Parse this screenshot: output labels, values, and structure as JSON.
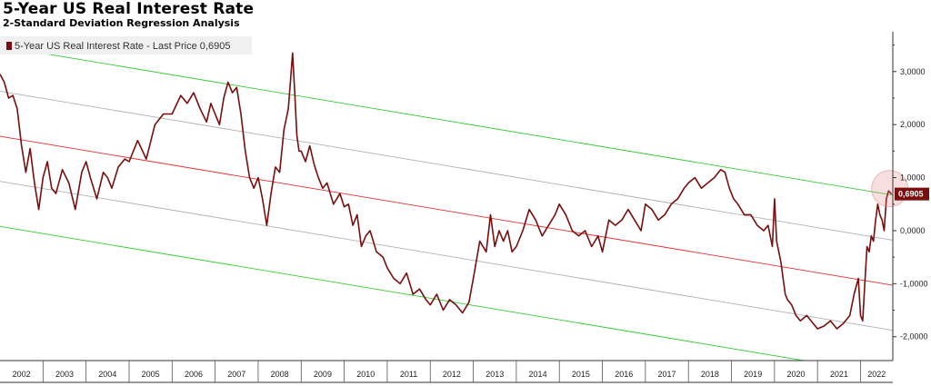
{
  "title": "5-Year US Real Interest Rate",
  "subtitle": "2-Standard Deviation Regression Analysis",
  "legend": {
    "label": "5-Year US Real Interest Rate - Last Price 0,6905"
  },
  "last_price_label": "0,6905",
  "colors": {
    "series": "#7a0d0d",
    "regression": "#e03030",
    "band_1sd": "#b0b0b0",
    "band_2sd": "#33cc33",
    "highlight": "#e08080"
  },
  "chart_data": {
    "type": "line",
    "title": "5-Year US Real Interest Rate",
    "subtitle": "2-Standard Deviation Regression Analysis",
    "xlabel": "",
    "ylabel": "",
    "xlim": [
      2002.0,
      2022.75
    ],
    "ylim": [
      -2.45,
      3.75
    ],
    "x_ticks": [
      "2002",
      "2003",
      "2004",
      "2005",
      "2006",
      "2007",
      "2008",
      "2009",
      "2010",
      "2011",
      "2012",
      "2013",
      "2014",
      "2015",
      "2016",
      "2017",
      "2018",
      "2019",
      "2020",
      "2021",
      "2022"
    ],
    "y_ticks": [
      "3,0000",
      "2,0000",
      "1,0000",
      "0,0000",
      "-1,0000",
      "-2,0000"
    ],
    "y_tick_values": [
      3,
      2,
      1,
      0,
      -1,
      -2
    ],
    "grid": false,
    "legend_position": "top-left",
    "series": [
      {
        "name": "5-Year US Real Interest Rate",
        "x": [
          2002.0,
          2002.1,
          2002.2,
          2002.3,
          2002.4,
          2002.5,
          2002.6,
          2002.7,
          2002.8,
          2002.9,
          2003.0,
          2003.1,
          2003.2,
          2003.3,
          2003.45,
          2003.6,
          2003.75,
          2003.9,
          2004.0,
          2004.1,
          2004.25,
          2004.4,
          2004.5,
          2004.6,
          2004.75,
          2004.9,
          2005.0,
          2005.2,
          2005.4,
          2005.6,
          2005.8,
          2006.0,
          2006.2,
          2006.35,
          2006.5,
          2006.65,
          2006.8,
          2006.9,
          2007.0,
          2007.1,
          2007.2,
          2007.3,
          2007.4,
          2007.5,
          2007.6,
          2007.7,
          2007.8,
          2007.9,
          2008.0,
          2008.1,
          2008.2,
          2008.3,
          2008.4,
          2008.5,
          2008.6,
          2008.7,
          2008.75,
          2008.8,
          2008.85,
          2008.9,
          2008.95,
          2009.0,
          2009.1,
          2009.2,
          2009.3,
          2009.4,
          2009.5,
          2009.6,
          2009.75,
          2009.9,
          2010.0,
          2010.1,
          2010.2,
          2010.3,
          2010.4,
          2010.5,
          2010.6,
          2010.75,
          2010.9,
          2011.0,
          2011.15,
          2011.3,
          2011.45,
          2011.6,
          2011.75,
          2011.9,
          2012.0,
          2012.15,
          2012.3,
          2012.45,
          2012.6,
          2012.75,
          2012.9,
          2013.0,
          2013.15,
          2013.3,
          2013.4,
          2013.5,
          2013.6,
          2013.7,
          2013.8,
          2013.9,
          2014.0,
          2014.15,
          2014.3,
          2014.45,
          2014.6,
          2014.75,
          2014.9,
          2015.0,
          2015.15,
          2015.3,
          2015.45,
          2015.6,
          2015.75,
          2015.9,
          2016.0,
          2016.15,
          2016.3,
          2016.45,
          2016.6,
          2016.75,
          2016.9,
          2017.0,
          2017.15,
          2017.3,
          2017.45,
          2017.6,
          2017.75,
          2017.9,
          2018.0,
          2018.15,
          2018.3,
          2018.45,
          2018.6,
          2018.75,
          2018.85,
          2018.95,
          2019.05,
          2019.15,
          2019.3,
          2019.45,
          2019.6,
          2019.75,
          2019.85,
          2019.95,
          2020.0,
          2020.05,
          2020.1,
          2020.15,
          2020.2,
          2020.25,
          2020.3,
          2020.4,
          2020.5,
          2020.6,
          2020.75,
          2020.9,
          2021.0,
          2021.15,
          2021.3,
          2021.45,
          2021.6,
          2021.75,
          2021.85,
          2021.95,
          2022.0,
          2022.05,
          2022.1,
          2022.15,
          2022.2,
          2022.25,
          2022.3,
          2022.35,
          2022.4,
          2022.45,
          2022.5,
          2022.55,
          2022.6,
          2022.65,
          2022.72
        ],
        "y": [
          2.95,
          2.8,
          2.5,
          2.55,
          2.3,
          1.6,
          1.1,
          1.55,
          0.9,
          0.4,
          1.0,
          1.3,
          0.8,
          0.7,
          1.15,
          0.9,
          0.4,
          1.1,
          1.3,
          1.0,
          0.6,
          1.1,
          1.0,
          0.8,
          1.2,
          1.35,
          1.3,
          1.7,
          1.35,
          2.0,
          2.2,
          2.2,
          2.55,
          2.4,
          2.6,
          2.3,
          2.05,
          2.4,
          2.2,
          2.0,
          2.5,
          2.8,
          2.6,
          2.7,
          2.2,
          1.5,
          1.0,
          0.8,
          1.0,
          0.6,
          0.1,
          0.7,
          1.2,
          1.1,
          1.9,
          2.3,
          2.8,
          3.35,
          2.6,
          1.8,
          1.5,
          1.5,
          1.3,
          1.6,
          1.25,
          1.0,
          0.8,
          0.9,
          0.5,
          0.7,
          0.45,
          0.5,
          0.1,
          0.3,
          -0.3,
          -0.1,
          0.0,
          -0.4,
          -0.5,
          -0.7,
          -0.9,
          -1.0,
          -0.8,
          -1.2,
          -1.1,
          -1.3,
          -1.4,
          -1.2,
          -1.5,
          -1.3,
          -1.4,
          -1.55,
          -1.35,
          -0.9,
          -0.2,
          -0.4,
          0.3,
          -0.3,
          0.0,
          -0.2,
          0.0,
          -0.4,
          -0.3,
          0.0,
          0.4,
          0.2,
          -0.1,
          0.1,
          0.3,
          0.5,
          0.3,
          0.0,
          -0.1,
          0.0,
          -0.3,
          -0.1,
          -0.4,
          0.2,
          0.1,
          0.2,
          0.4,
          0.2,
          0.0,
          0.5,
          0.4,
          0.2,
          0.3,
          0.5,
          0.6,
          0.8,
          0.9,
          1.0,
          0.8,
          0.9,
          1.0,
          1.15,
          1.1,
          0.8,
          0.6,
          0.5,
          0.3,
          0.3,
          0.1,
          0.0,
          0.1,
          -0.3,
          0.6,
          -0.2,
          -0.4,
          -0.6,
          -0.9,
          -1.2,
          -1.3,
          -1.4,
          -1.6,
          -1.7,
          -1.6,
          -1.75,
          -1.85,
          -1.8,
          -1.7,
          -1.85,
          -1.75,
          -1.6,
          -1.2,
          -0.9,
          -1.6,
          -1.7,
          -1.0,
          -0.3,
          -0.4,
          -0.1,
          -0.2,
          0.2,
          0.5,
          0.3,
          0.2,
          0.0,
          0.6,
          0.75,
          0.69
        ]
      }
    ],
    "regression": {
      "center_start": 1.78,
      "center_end": -1.03,
      "sd_offset": 0.85
    },
    "last_price": 0.6905
  }
}
